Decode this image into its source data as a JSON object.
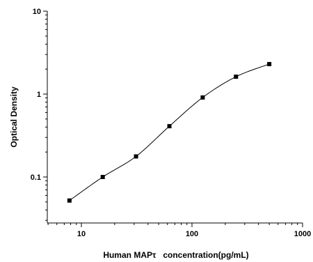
{
  "chart_data": {
    "type": "scatter",
    "title": "",
    "xlabel": "Human MAPτ   concentration(pg/mL)",
    "ylabel": "Optical Density",
    "x_scale": "log",
    "y_scale": "log",
    "xlim": [
      5,
      1000
    ],
    "ylim": [
      0.03,
      10
    ],
    "x_ticks": [
      10,
      100,
      1000
    ],
    "x_tick_labels": [
      "10",
      "100",
      "1000"
    ],
    "y_ticks": [
      0.1,
      1,
      10
    ],
    "y_tick_labels": [
      "0.1",
      "1",
      "10"
    ],
    "grid": false,
    "legend": "none",
    "series": [
      {
        "marker": "square",
        "color": "#000000",
        "x": [
          7.8,
          15.6,
          31.2,
          62.5,
          125,
          250,
          500
        ],
        "y": [
          0.052,
          0.1,
          0.177,
          0.41,
          0.91,
          1.62,
          2.3
        ]
      }
    ],
    "fit_curve": {
      "type": "4PL",
      "color": "#000000"
    }
  }
}
